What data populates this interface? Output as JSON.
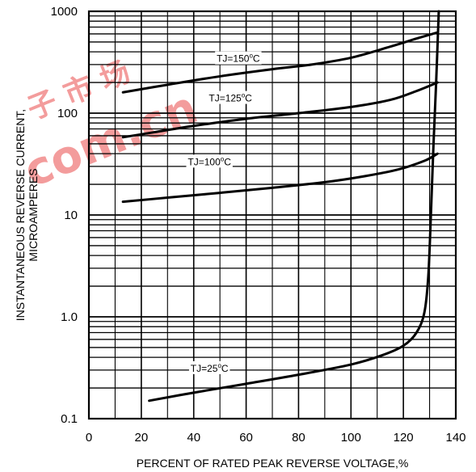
{
  "chart_data": {
    "type": "line",
    "xlabel": "PERCENT OF RATED PEAK REVERSE VOLTAGE,%",
    "ylabel_lines": [
      "INSTANTANEOUS REVERSE CURRENT,",
      "MICROAMPERES"
    ],
    "x_ticks": [
      "0",
      "20",
      "40",
      "60",
      "80",
      "100",
      "120",
      "140"
    ],
    "y_ticks": [
      "0.1",
      "1.0",
      "10",
      "100",
      "1000"
    ],
    "xlim": [
      0,
      140
    ],
    "ylim": [
      0.1,
      1000
    ],
    "y_scale": "log",
    "grid": true,
    "watermark": {
      "text": "com.cn",
      "chinese": "子 市 场"
    },
    "series": [
      {
        "name": "TJ=150°C",
        "label_parts": {
          "base": "TJ=150",
          "sup": "o",
          "unit": "C"
        },
        "points": [
          [
            13,
            160
          ],
          [
            30,
            190
          ],
          [
            50,
            230
          ],
          [
            70,
            270
          ],
          [
            85,
            300
          ],
          [
            100,
            350
          ],
          [
            115,
            450
          ],
          [
            125,
            540
          ],
          [
            133,
            620
          ]
        ]
      },
      {
        "name": "TJ=125°C",
        "label_parts": {
          "base": "TJ=125",
          "sup": "o",
          "unit": "C"
        },
        "points": [
          [
            13,
            58
          ],
          [
            25,
            65
          ],
          [
            40,
            75
          ],
          [
            60,
            88
          ],
          [
            80,
            100
          ],
          [
            100,
            115
          ],
          [
            115,
            135
          ],
          [
            125,
            165
          ],
          [
            133,
            200
          ]
        ]
      },
      {
        "name": "TJ=100°C",
        "label_parts": {
          "base": "TJ=100",
          "sup": "o",
          "unit": "C"
        },
        "points": [
          [
            13,
            13.5
          ],
          [
            30,
            14.8
          ],
          [
            50,
            16.5
          ],
          [
            70,
            18.5
          ],
          [
            90,
            21
          ],
          [
            105,
            24
          ],
          [
            118,
            28
          ],
          [
            128,
            34
          ],
          [
            133,
            40
          ]
        ]
      },
      {
        "name": "TJ=25°C",
        "label_parts": {
          "base": "TJ=25",
          "sup": "o",
          "unit": "C"
        },
        "points": [
          [
            23,
            0.15
          ],
          [
            40,
            0.18
          ],
          [
            60,
            0.22
          ],
          [
            80,
            0.27
          ],
          [
            100,
            0.34
          ],
          [
            112,
            0.42
          ],
          [
            120,
            0.52
          ],
          [
            125,
            0.7
          ],
          [
            128,
            1.1
          ],
          [
            129.5,
            2.5
          ],
          [
            130.5,
            10
          ],
          [
            131.5,
            50
          ],
          [
            132.5,
            200
          ],
          [
            133.5,
            1000
          ]
        ]
      }
    ]
  }
}
